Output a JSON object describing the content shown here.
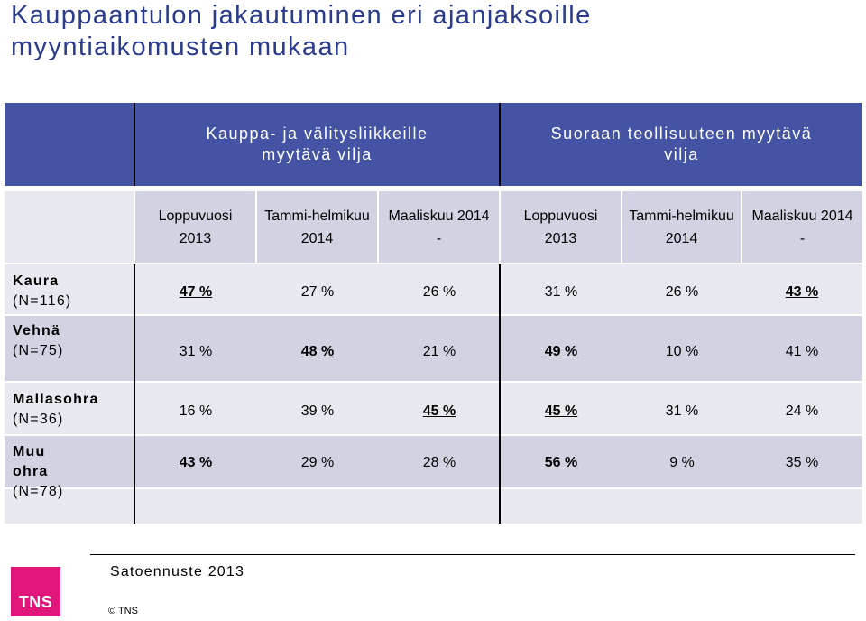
{
  "title_lines": [
    "Kauppaantulon jakautuminen eri ajanjaksoille",
    "myyntiaikomusten mukaan"
  ],
  "groups": [
    [
      "Kauppa- ja välitysliikkeille",
      "myytävä vilja"
    ],
    [
      "Suoraan teollisuuteen myytävä",
      "vilja"
    ]
  ],
  "periods": [
    [
      "Loppuvuosi",
      "2013"
    ],
    [
      "Tammi-helmikuu",
      "2014"
    ],
    [
      "Maaliskuu 2014",
      "-"
    ],
    [
      "Loppuvuosi",
      "2013"
    ],
    [
      "Tammi-helmikuu",
      "2014"
    ],
    [
      "Maaliskuu 2014",
      "-"
    ]
  ],
  "rows": [
    {
      "name": "Kaura",
      "n": "(N=116)",
      "values": [
        "47 %",
        "27 %",
        "26 %",
        "31 %",
        "26 %",
        "43 %"
      ],
      "highlight": [
        true,
        false,
        false,
        false,
        false,
        true
      ]
    },
    {
      "name": "Vehnä",
      "n": "(N=75)",
      "values": [
        "31 %",
        "48 %",
        "21 %",
        "49 %",
        "10 %",
        "41 %"
      ],
      "highlight": [
        false,
        true,
        false,
        true,
        false,
        false
      ]
    },
    {
      "name": "Mallasohra",
      "n": "(N=36)",
      "values": [
        "16 %",
        "39 %",
        "45 %",
        "45 %",
        "31 %",
        "24 %"
      ],
      "highlight": [
        false,
        false,
        true,
        true,
        false,
        false
      ]
    },
    {
      "name": "Muu ohra",
      "n": "(N=78)",
      "values": [
        "43 %",
        "29 %",
        "28 %",
        "56 %",
        "9 %",
        "35 %"
      ],
      "highlight": [
        true,
        false,
        false,
        true,
        false,
        false
      ]
    }
  ],
  "footer": {
    "source": "Satoennuste 2013",
    "copyright": "© TNS",
    "logo_text": "TNS"
  },
  "colors": {
    "header_band": "#4553a5",
    "cell_dark": "#d2d3e2",
    "cell_light": "#e8e9f0",
    "logo": "#e1167a",
    "title": "#2a3a8c"
  }
}
